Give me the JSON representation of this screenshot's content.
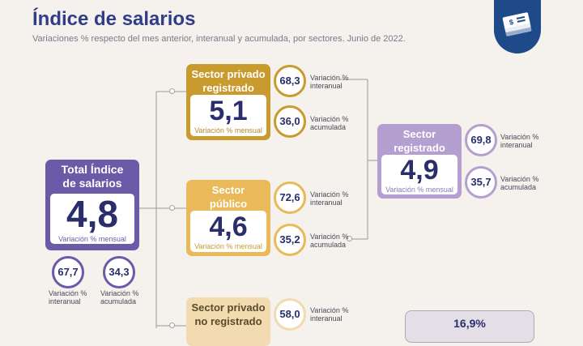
{
  "header": {
    "title": "Índice de salarios",
    "subtitle": "Variaciones % respecto del mes anterior, interanual y acumulada, por sectores. Junio de 2022."
  },
  "colors": {
    "total": "#6a5aa8",
    "privado": "#c99a2e",
    "publico": "#e9b95a",
    "registrado": "#b49fd0",
    "no_registrado": "#f2dbb0",
    "badge": "#1f4a8a"
  },
  "total": {
    "label": "Total Índice de salarios",
    "value": "4,8",
    "caption": "Variación % mensual",
    "interanual_value": "67,7",
    "interanual_label": "Variación % interanual",
    "acumulada_value": "34,3",
    "acumulada_label": "Variación % acumulada"
  },
  "privado": {
    "label": "Sector privado registrado",
    "value": "5,1",
    "caption": "Variación % mensual",
    "interanual_value": "68,3",
    "interanual_label": "Variación % interanual",
    "acumulada_value": "36,0",
    "acumulada_label": "Variación % acumulada"
  },
  "publico": {
    "label": "Sector público",
    "value": "4,6",
    "caption": "Variación % mensual",
    "interanual_value": "72,6",
    "interanual_label": "Variación % interanual",
    "acumulada_value": "35,2",
    "acumulada_label": "Variación % acumulada"
  },
  "no_registrado": {
    "label": "Sector privado no registrado",
    "interanual_value": "58,0",
    "interanual_label": "Variación % interanual"
  },
  "registrado": {
    "label": "Sector registrado",
    "value": "4,9",
    "caption": "Variación % mensual",
    "interanual_value": "69,8",
    "interanual_label": "Variación % interanual",
    "acumulada_value": "35,7",
    "acumulada_label": "Variación % acumulada"
  },
  "bottom_box": {
    "value": "16,9%"
  }
}
